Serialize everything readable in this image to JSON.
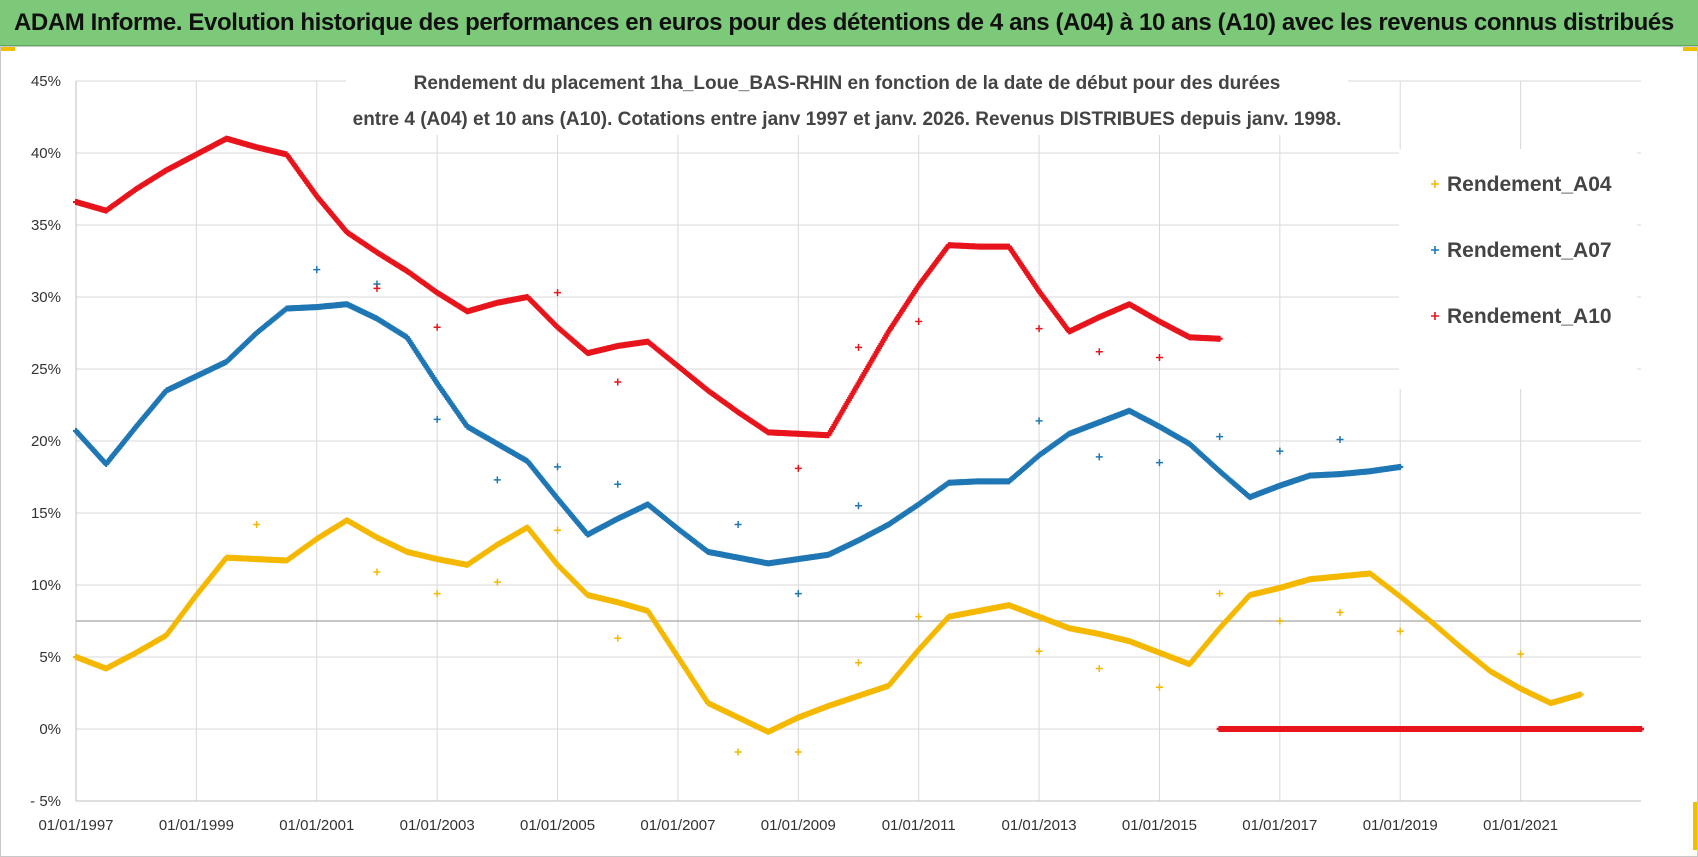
{
  "banner": {
    "title": "ADAM Informe. Evolution historique des performances en euros pour des détentions de 4 ans (A04) à 10 ans (A10) avec les revenus connus distribués"
  },
  "colors": {
    "a04": "#f5b800",
    "a07": "#1f77b4",
    "a10": "#e8141c",
    "banner": "#7dc97a",
    "grid": "#d9d9d9",
    "accent_corner": "#f0c000"
  },
  "chart_data": {
    "type": "scatter",
    "title_lines": [
      "Rendement du placement 1ha_Loue_BAS-RHIN en fonction de la date de début pour des durées",
      "entre 4 (A04) et 10 ans (A10). Cotations entre janv 1997 et janv. 2026. Revenus DISTRIBUES depuis janv. 1998."
    ],
    "xlabel": "",
    "ylabel": "",
    "xlim": [
      1997.0,
      2023.0
    ],
    "ylim": [
      -5,
      45
    ],
    "x_tick_years": [
      1997,
      1999,
      2001,
      2003,
      2005,
      2007,
      2009,
      2011,
      2013,
      2015,
      2017,
      2019,
      2021
    ],
    "x_tick_labels": [
      "01/01/1997",
      "01/01/1999",
      "01/01/2001",
      "01/01/2003",
      "01/01/2005",
      "01/01/2007",
      "01/01/2009",
      "01/01/2011",
      "01/01/2013",
      "01/01/2015",
      "01/01/2017",
      "01/01/2019",
      "01/01/2021"
    ],
    "y_ticks": [
      -5,
      0,
      5,
      10,
      15,
      20,
      25,
      30,
      35,
      40,
      45
    ],
    "y_tick_labels": [
      "- 5%",
      "0%",
      "5%",
      "10%",
      "15%",
      "20%",
      "25%",
      "30%",
      "35%",
      "40%",
      "45%"
    ],
    "legend": [
      "Rendement_A04",
      "Rendement_A07",
      "Rendement_A10"
    ],
    "legend_position": "top-right",
    "series": [
      {
        "name": "Rendement_A04",
        "key": "a04",
        "x": [
          1997.0,
          1997.5,
          1998.0,
          1998.5,
          1999.0,
          1999.5,
          2000.0,
          2000.5,
          2001.0,
          2001.5,
          2002.0,
          2002.5,
          2003.0,
          2003.5,
          2004.0,
          2004.5,
          2005.0,
          2005.5,
          2006.0,
          2006.5,
          2007.0,
          2007.5,
          2008.0,
          2008.5,
          2009.0,
          2009.5,
          2010.0,
          2010.5,
          2011.0,
          2011.5,
          2012.0,
          2012.5,
          2013.0,
          2013.5,
          2014.0,
          2014.5,
          2015.0,
          2015.5,
          2016.0,
          2016.5,
          2017.0,
          2017.5,
          2018.0,
          2018.5,
          2019.0,
          2019.5,
          2020.0,
          2020.5,
          2021.0,
          2021.5,
          2022.0
        ],
        "values": [
          5.0,
          4.2,
          5.3,
          6.5,
          9.3,
          11.9,
          11.8,
          11.7,
          13.2,
          14.5,
          13.3,
          12.3,
          11.8,
          11.4,
          12.8,
          14.0,
          11.4,
          9.3,
          8.8,
          8.2,
          5.0,
          1.8,
          0.8,
          -0.2,
          0.8,
          1.6,
          2.3,
          3.0,
          5.5,
          7.8,
          8.2,
          8.6,
          7.8,
          7.0,
          6.6,
          6.1,
          5.3,
          4.5,
          7.0,
          9.3,
          9.8,
          10.4,
          10.6,
          10.8,
          9.2,
          7.5,
          5.7,
          4.0,
          2.8,
          1.8,
          2.4
        ],
        "outliers_x": [
          2000.0,
          2002.0,
          2003.0,
          2004.0,
          2005.0,
          2006.0,
          2008.0,
          2009.0,
          2010.0,
          2011.0,
          2013.0,
          2014.0,
          2015.0,
          2016.0,
          2017.0,
          2018.0,
          2019.0,
          2021.0
        ],
        "outliers_y": [
          14.2,
          10.9,
          9.4,
          10.2,
          13.8,
          6.3,
          -1.6,
          -1.6,
          4.6,
          7.8,
          5.4,
          4.2,
          2.9,
          9.4,
          7.5,
          8.1,
          6.8,
          5.2
        ]
      },
      {
        "name": "Rendement_A07",
        "key": "a07",
        "x": [
          1997.0,
          1997.5,
          1998.0,
          1998.5,
          1999.0,
          1999.5,
          2000.0,
          2000.5,
          2001.0,
          2001.5,
          2002.0,
          2002.5,
          2003.0,
          2003.5,
          2004.0,
          2004.5,
          2005.0,
          2005.5,
          2006.0,
          2006.5,
          2007.0,
          2007.5,
          2008.0,
          2008.5,
          2009.0,
          2009.5,
          2010.0,
          2010.5,
          2011.0,
          2011.5,
          2012.0,
          2012.5,
          2013.0,
          2013.5,
          2014.0,
          2014.5,
          2015.0,
          2015.5,
          2016.0,
          2016.5,
          2017.0,
          2017.5,
          2018.0,
          2018.5,
          2019.0
        ],
        "values": [
          20.7,
          18.4,
          21.0,
          23.5,
          24.5,
          25.5,
          27.5,
          29.2,
          29.3,
          29.5,
          28.5,
          27.2,
          24.0,
          21.0,
          19.8,
          18.6,
          16.0,
          13.5,
          14.6,
          15.6,
          13.9,
          12.3,
          11.9,
          11.5,
          11.8,
          12.1,
          13.1,
          14.2,
          15.6,
          17.1,
          17.2,
          17.2,
          19.0,
          20.5,
          21.3,
          22.1,
          21.0,
          19.8,
          17.9,
          16.1,
          16.9,
          17.6,
          17.7,
          17.9,
          18.2
        ],
        "outliers_x": [
          2001.0,
          2002.0,
          2003.0,
          2004.0,
          2005.0,
          2006.0,
          2008.0,
          2009.0,
          2010.0,
          2013.0,
          2014.0,
          2015.0,
          2016.0,
          2017.0,
          2018.0
        ],
        "outliers_y": [
          31.9,
          30.9,
          21.5,
          17.3,
          18.2,
          17.0,
          14.2,
          9.4,
          15.5,
          21.4,
          18.9,
          18.5,
          20.3,
          19.3,
          20.1
        ]
      },
      {
        "name": "Rendement_A10",
        "key": "a10",
        "x": [
          1997.0,
          1997.5,
          1998.0,
          1998.5,
          1999.0,
          1999.5,
          2000.0,
          2000.5,
          2001.0,
          2001.5,
          2002.0,
          2002.5,
          2003.0,
          2003.5,
          2004.0,
          2004.5,
          2005.0,
          2005.5,
          2006.0,
          2006.5,
          2007.0,
          2007.5,
          2008.0,
          2008.5,
          2009.0,
          2009.5,
          2010.0,
          2010.5,
          2011.0,
          2011.5,
          2012.0,
          2012.5,
          2013.0,
          2013.5,
          2014.0,
          2014.5,
          2015.0,
          2015.5,
          2016.0
        ],
        "values": [
          36.6,
          36.0,
          37.5,
          38.8,
          39.9,
          41.0,
          40.4,
          39.9,
          37.0,
          34.5,
          33.1,
          31.8,
          30.3,
          29.0,
          29.6,
          30.0,
          27.9,
          26.1,
          26.6,
          26.9,
          25.2,
          23.5,
          22.0,
          20.6,
          20.5,
          20.4,
          24.0,
          27.6,
          30.8,
          33.6,
          33.5,
          33.5,
          30.4,
          27.6,
          28.6,
          29.5,
          28.3,
          27.2,
          27.1
        ],
        "outliers_x": [
          2002.0,
          2003.0,
          2005.0,
          2006.0,
          2009.0,
          2010.0,
          2011.0,
          2013.0,
          2014.0,
          2015.0
        ],
        "outliers_y": [
          30.6,
          27.9,
          30.3,
          24.1,
          18.1,
          26.5,
          28.3,
          27.8,
          26.2,
          25.8
        ],
        "flat_zero_x_range": [
          2016.0,
          2023.0
        ],
        "flat_zero_value": 0
      }
    ]
  }
}
